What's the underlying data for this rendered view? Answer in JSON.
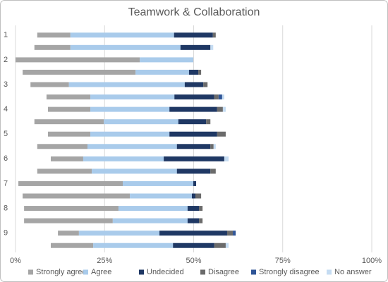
{
  "chart_data": {
    "type": "bar",
    "orientation": "horizontal",
    "stacked": true,
    "title": "Teamwork & Collaboration",
    "categories": [
      "1",
      null,
      "2",
      null,
      "3",
      null,
      "4",
      null,
      "5",
      null,
      "6",
      null,
      "7",
      null,
      "8",
      null,
      "9",
      null
    ],
    "series": [
      {
        "color": "none",
        "values": [
          6.1,
          5.3,
          0,
          2,
          4.2,
          8.7,
          9.1,
          5.3,
          9.1,
          6.1,
          9.9,
          6.1,
          0.8,
          2,
          2.4,
          2.4,
          11.9,
          9.9
        ]
      },
      {
        "name": "Strongly agree",
        "color": "#a5a5a5",
        "values": [
          9.3,
          10.1,
          34.9,
          31.7,
          10.8,
          12.3,
          11.9,
          19.5,
          11.9,
          14.1,
          9.1,
          15.3,
          29.3,
          30.1,
          26.5,
          24.9,
          5.9,
          11.9
        ]
      },
      {
        "name": "Agree",
        "color": "#a9cbeb",
        "values": [
          29.1,
          30.9,
          15,
          15,
          32.5,
          23.6,
          22.2,
          20.9,
          22.2,
          25.1,
          22.6,
          23.9,
          19.8,
          17.4,
          19.4,
          21,
          22.6,
          22.4
        ]
      },
      {
        "name": "Undecided",
        "color": "#1f3864",
        "values": [
          10.9,
          8.4,
          0,
          2.6,
          5.2,
          11.2,
          13.4,
          7.8,
          13.4,
          9.4,
          17,
          9.4,
          0.8,
          1,
          3.2,
          3.2,
          19,
          11.6
        ]
      },
      {
        "name": "Disagree",
        "color": "#6b6b6b",
        "values": [
          0.8,
          0,
          0,
          0.8,
          1.2,
          1.2,
          1.6,
          1.2,
          2.4,
          0.9,
          0,
          1.5,
          0,
          1.6,
          1,
          1,
          1.6,
          3.2
        ]
      },
      {
        "name": "Strongly disagree",
        "color": "#2f5597",
        "values": [
          0,
          0,
          0,
          0,
          0,
          1,
          0,
          0,
          0,
          0,
          0,
          0,
          0,
          0,
          0,
          0,
          0.8,
          0
        ]
      },
      {
        "name": "No answer",
        "color": "#c5dcf2",
        "values": [
          0,
          0.8,
          0,
          0,
          0,
          0.6,
          0.8,
          0,
          0,
          0.6,
          1.2,
          0,
          0,
          0,
          0,
          0,
          0,
          0.8
        ]
      }
    ],
    "xlim": [
      0,
      100
    ],
    "xticks": [
      {
        "value": 0,
        "label": "0%"
      },
      {
        "value": 25,
        "label": "25%"
      },
      {
        "value": 50,
        "label": "50%"
      },
      {
        "value": 75,
        "label": "75%"
      },
      {
        "value": 100,
        "label": "100%"
      }
    ],
    "grid": true,
    "legend": "bottom"
  }
}
